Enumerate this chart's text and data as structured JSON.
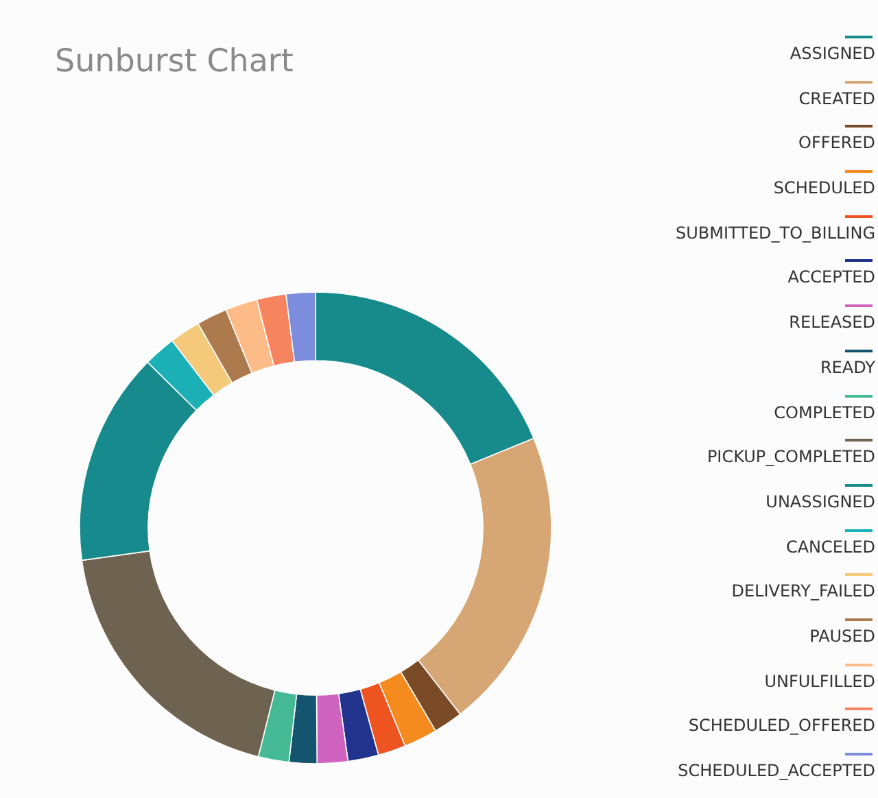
{
  "chart_data": {
    "type": "donut",
    "title": "Sunburst Chart",
    "categories": [
      "ASSIGNED",
      "CREATED",
      "OFFERED",
      "SCHEDULED",
      "SUBMITTED_TO_BILLING",
      "ACCEPTED",
      "RELEASED",
      "READY",
      "COMPLETED",
      "PICKUP_COMPLETED",
      "UNASSIGNED",
      "CANCELED",
      "DELIVERY_FAILED",
      "PAUSED",
      "UNFULFILLED",
      "SCHEDULED_OFFERED",
      "SCHEDULED_ACCEPTED"
    ],
    "values": [
      18.8,
      20.7,
      2.0,
      2.3,
      1.9,
      2.1,
      2.1,
      1.9,
      2.1,
      18.9,
      14.6,
      2.2,
      2.1,
      2.1,
      2.2,
      2.0,
      2.0
    ],
    "colors": [
      "#178a8c",
      "#d6a774",
      "#7a4a26",
      "#f58a1f",
      "#ee5420",
      "#21338c",
      "#d163c0",
      "#14546e",
      "#45b894",
      "#6e6350",
      "#168a8c",
      "#1ab0b5",
      "#f5c97a",
      "#ad7a4e",
      "#fdbb88",
      "#f6845f",
      "#7b8ddc"
    ],
    "legend": "right"
  }
}
